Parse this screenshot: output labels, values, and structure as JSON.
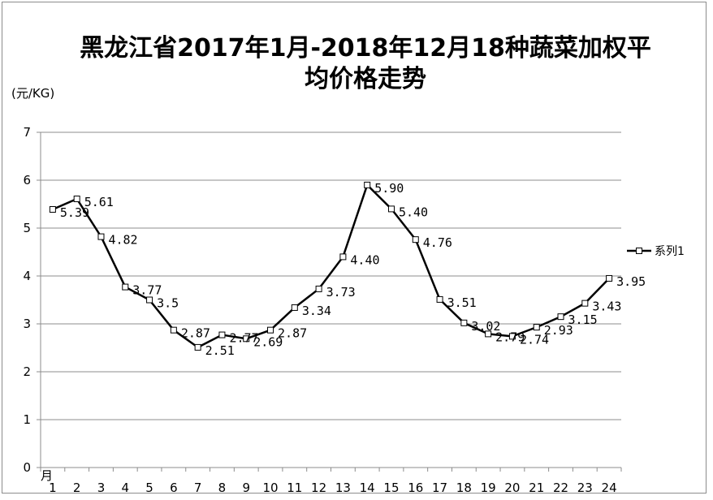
{
  "title_line1": "黑龙江省2017年1月-2018年12月18种蔬菜加权平",
  "title_line2": "均价格走势",
  "y_unit": "(元/KG)",
  "x_unit": "月",
  "chart_data": {
    "type": "line",
    "title": "黑龙江省2017年1月-2018年12月18种蔬菜加权平均价格走势",
    "ylabel": "(元/KG)",
    "xlabel": "月",
    "ylim": [
      0,
      7
    ],
    "yticks": [
      "0",
      "1",
      "2",
      "3",
      "4",
      "5",
      "6",
      "7"
    ],
    "categories": [
      "1",
      "2",
      "3",
      "4",
      "5",
      "6",
      "7",
      "8",
      "9",
      "10",
      "11",
      "12",
      "13",
      "14",
      "15",
      "16",
      "17",
      "18",
      "19",
      "20",
      "21",
      "22",
      "23",
      "24"
    ],
    "grid": true,
    "legend_position": "right",
    "series": [
      {
        "name": "系列1",
        "color": "#000000",
        "values": [
          5.39,
          5.61,
          4.82,
          3.77,
          3.5,
          2.87,
          2.51,
          2.77,
          2.69,
          2.87,
          3.34,
          3.73,
          4.4,
          5.9,
          5.4,
          4.76,
          3.51,
          3.02,
          2.79,
          2.74,
          2.93,
          3.15,
          3.43,
          3.95
        ],
        "labels": [
          "5.39",
          "5.61",
          "4.82",
          "3.77",
          "3.5",
          "2.87",
          "2.51",
          "2.77",
          "2.69",
          "2.87",
          "3.34",
          "3.73",
          "4.40",
          "5.90",
          "5.40",
          "4.76",
          "3.51",
          "3.02",
          "2.79",
          "2.74",
          "2.93",
          "3.15",
          "3.43",
          "3.95"
        ]
      }
    ]
  }
}
